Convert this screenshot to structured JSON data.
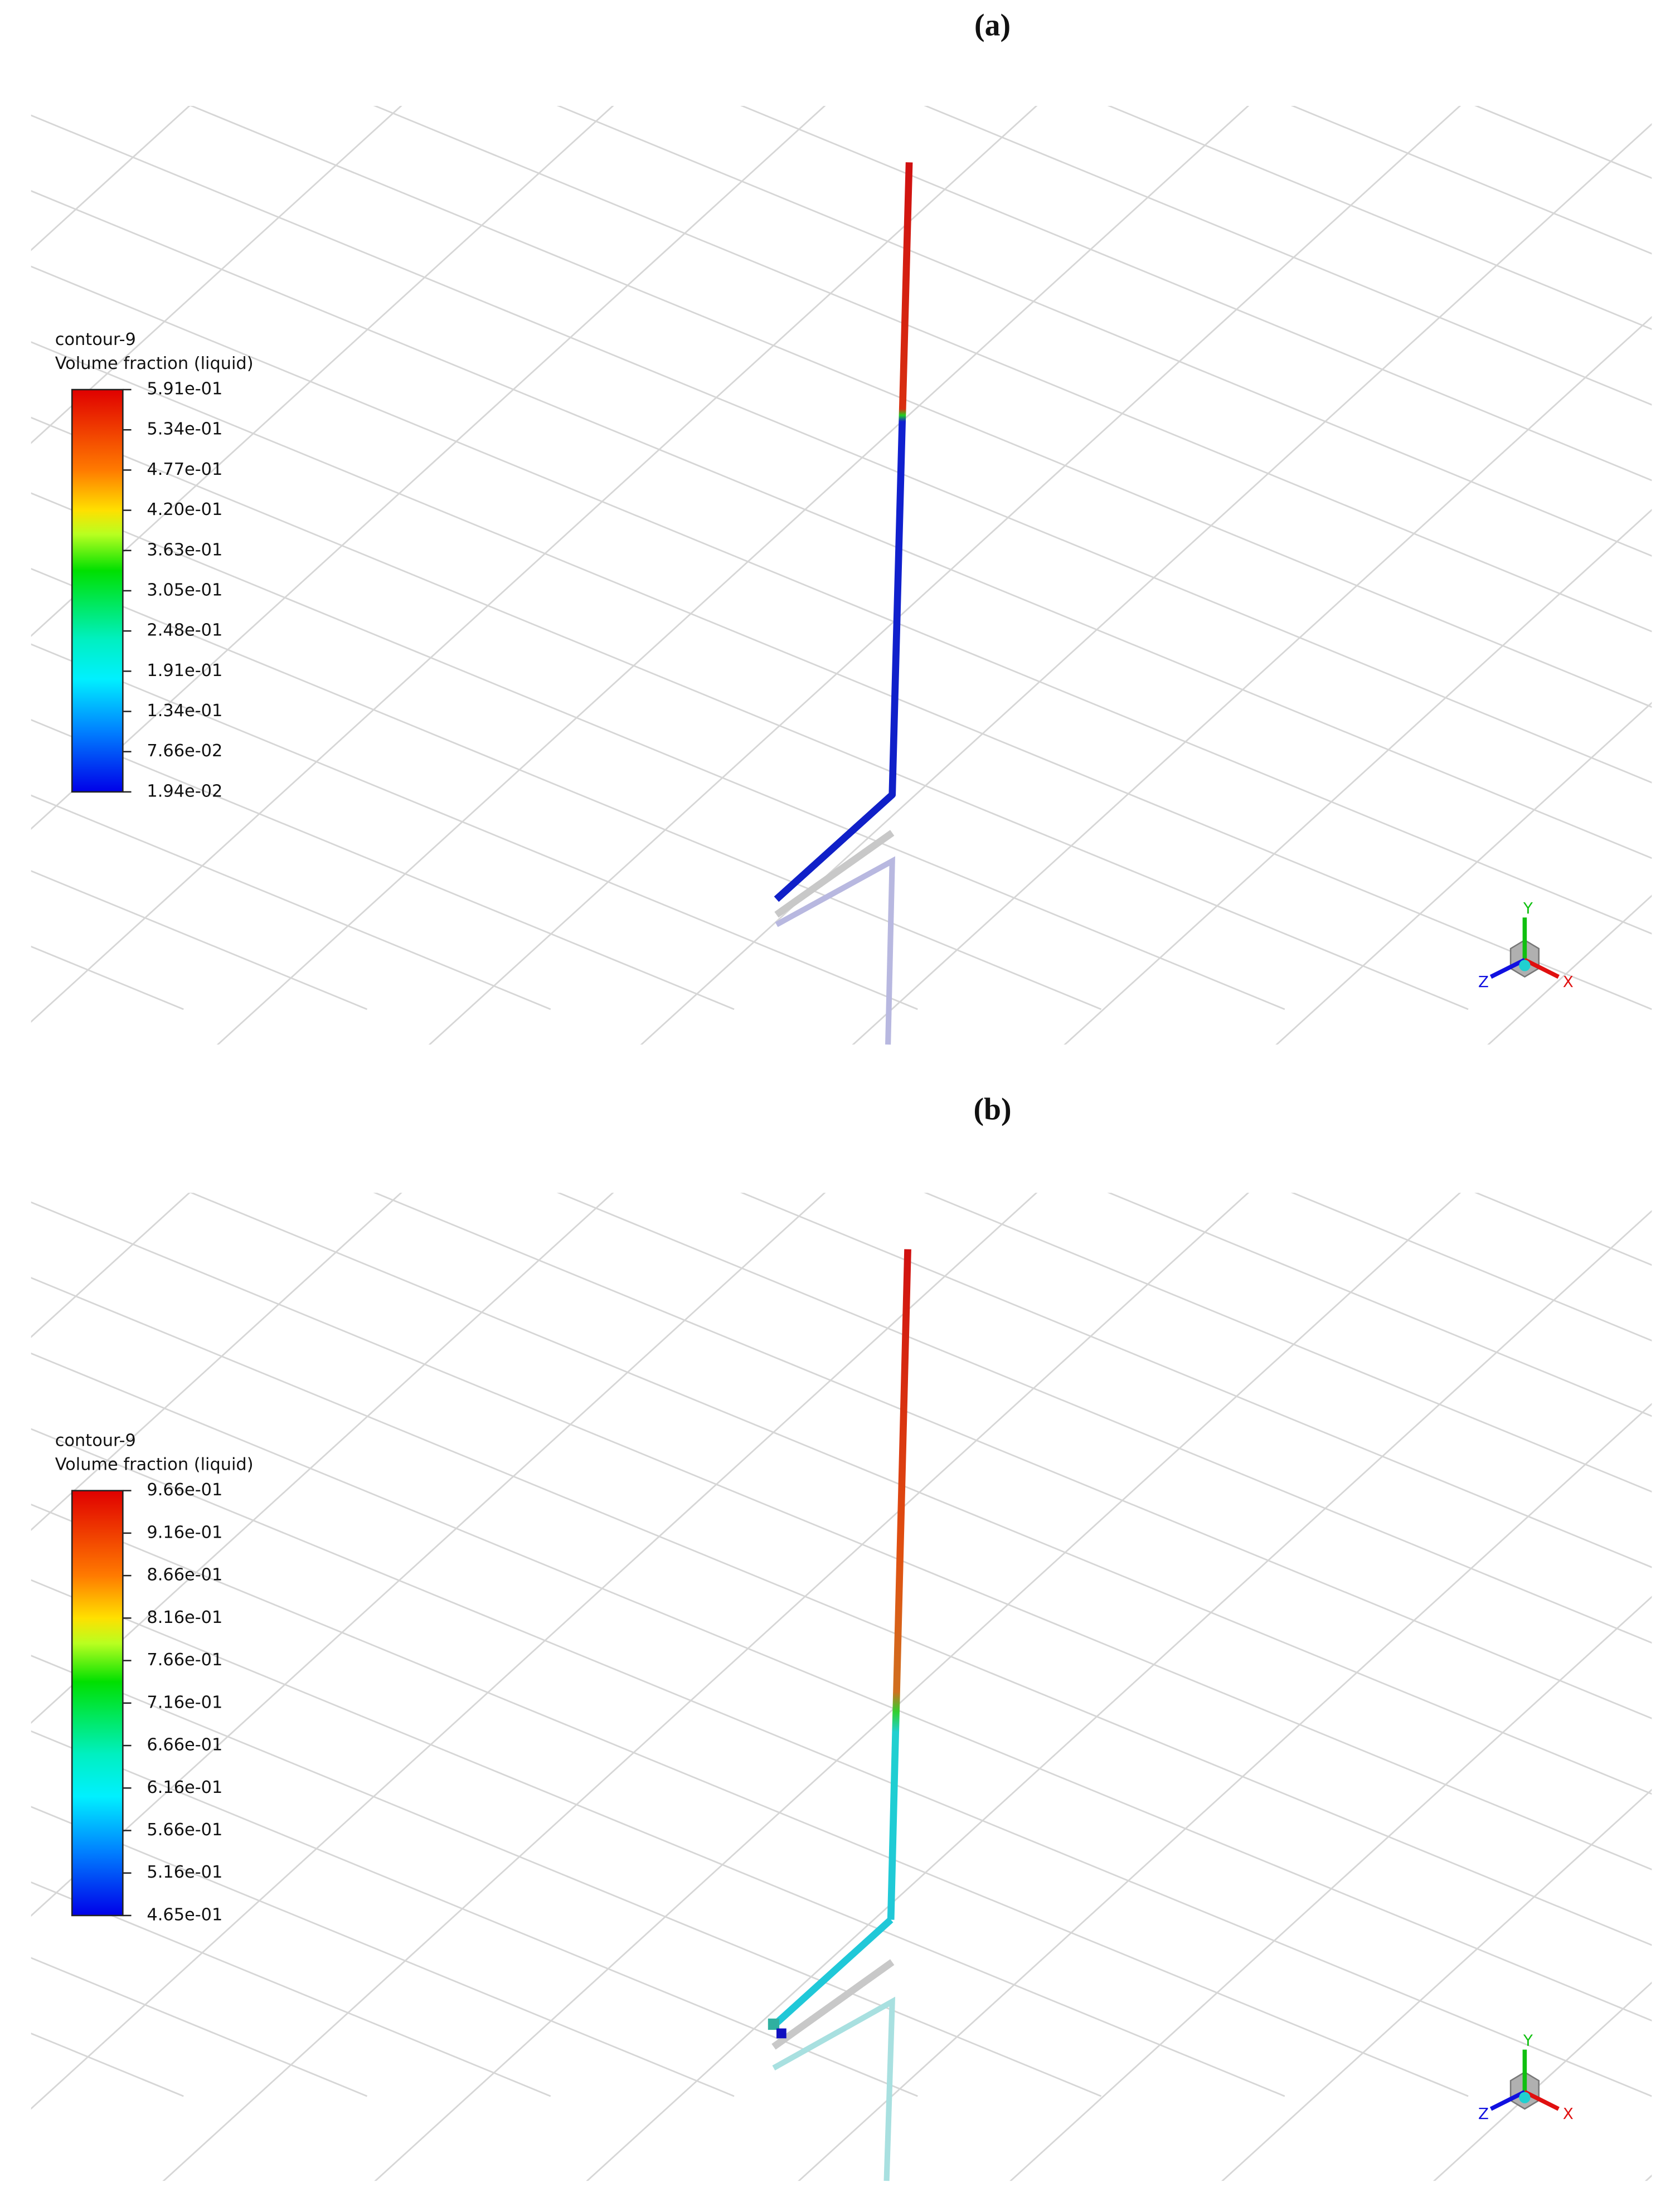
{
  "panels": [
    {
      "label": "(a)",
      "legend": {
        "title": "contour-9",
        "quantity": "Volume fraction (liquid)",
        "ticks": [
          "5.91e-01",
          "5.34e-01",
          "4.77e-01",
          "4.20e-01",
          "3.63e-01",
          "3.05e-01",
          "2.48e-01",
          "1.91e-01",
          "1.34e-01",
          "7.66e-02",
          "1.94e-02"
        ]
      }
    },
    {
      "label": "(b)",
      "legend": {
        "title": "contour-9",
        "quantity": "Volume fraction (liquid)",
        "ticks": [
          "9.66e-01",
          "9.16e-01",
          "8.66e-01",
          "8.16e-01",
          "7.66e-01",
          "7.16e-01",
          "6.66e-01",
          "6.16e-01",
          "5.66e-01",
          "5.16e-01",
          "4.65e-01"
        ]
      }
    }
  ],
  "axes": {
    "x": "X",
    "y": "Y",
    "z": "Z"
  }
}
